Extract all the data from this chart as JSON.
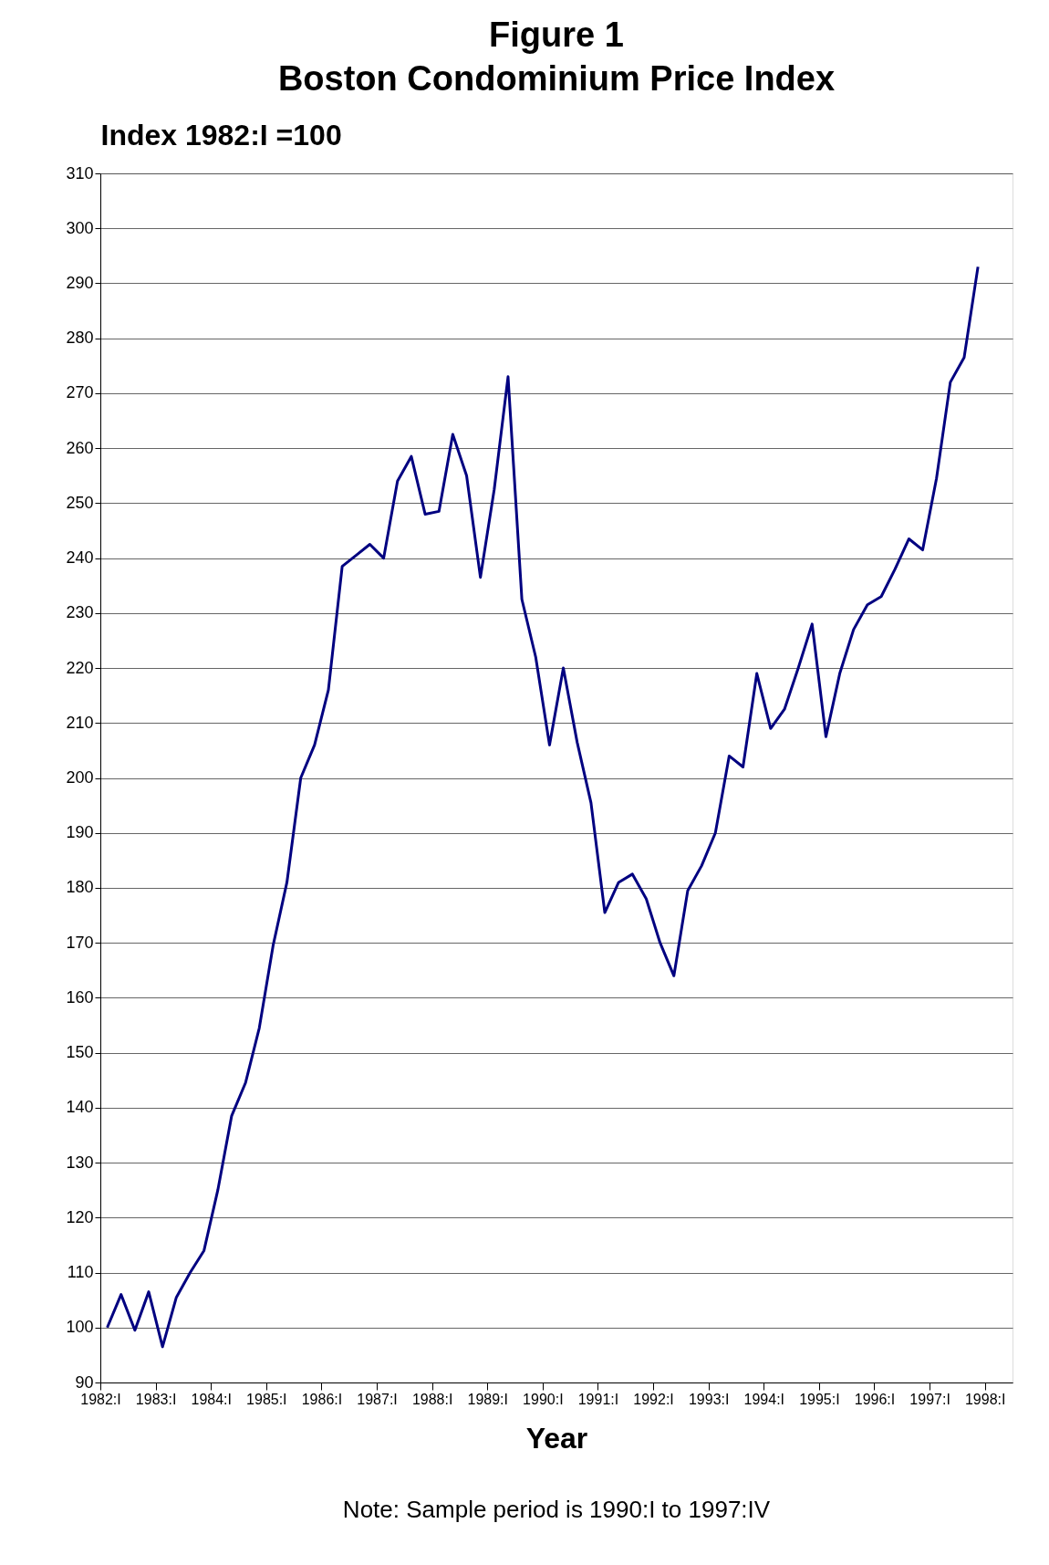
{
  "chart_data": {
    "type": "line",
    "title": "Figure 1",
    "subtitle": "Boston Condominium Price Index",
    "xlabel": "Year",
    "ylabel": "Index 1982:I =100",
    "annotations": [
      "Note: Sample period is 1990:I to 1997:IV"
    ],
    "x": [
      1982.125,
      1982.375,
      1982.625,
      1982.875,
      1983.125,
      1983.375,
      1983.625,
      1983.875,
      1984.125,
      1984.375,
      1984.625,
      1984.875,
      1985.125,
      1985.375,
      1985.625,
      1985.875,
      1986.125,
      1986.375,
      1986.625,
      1986.875,
      1987.125,
      1987.375,
      1987.625,
      1987.875,
      1988.125,
      1988.375,
      1988.625,
      1988.875,
      1989.125,
      1989.375,
      1989.625,
      1989.875,
      1990.125,
      1990.375,
      1990.625,
      1990.875,
      1991.125,
      1991.375,
      1991.625,
      1991.875,
      1992.125,
      1992.375,
      1992.625,
      1992.875,
      1993.125,
      1993.375,
      1993.625,
      1993.875,
      1994.125,
      1994.375,
      1994.625,
      1994.875,
      1995.125,
      1995.375,
      1995.625,
      1995.875,
      1996.125,
      1996.375,
      1996.625,
      1996.875,
      1997.125,
      1997.375,
      1997.625,
      1997.875
    ],
    "series": [
      {
        "color": "#000080",
        "values": [
          100,
          106,
          99.5,
          106.5,
          96.5,
          105.5,
          110,
          114,
          125,
          138.5,
          144.5,
          154.5,
          169.5,
          181,
          200,
          206,
          216,
          238.5,
          240.5,
          242.5,
          240,
          254,
          258.5,
          248,
          248.5,
          262.5,
          255,
          236.5,
          252.5,
          273,
          232.5,
          222,
          206,
          220,
          206.5,
          195.5,
          175.5,
          181,
          182.5,
          178,
          170,
          164,
          179.5,
          184,
          190,
          204,
          202,
          219,
          209,
          212.5,
          220,
          228,
          207.5,
          219,
          227,
          231.5,
          233,
          238,
          243.5,
          241.5,
          254.5,
          272,
          276.5,
          293
        ]
      }
    ],
    "xlim": [
      1982,
      1998.5
    ],
    "xticks": [
      {
        "value": 1982,
        "label": "1982:I"
      },
      {
        "value": 1983,
        "label": "1983:I"
      },
      {
        "value": 1984,
        "label": "1984:I"
      },
      {
        "value": 1985,
        "label": "1985:I"
      },
      {
        "value": 1986,
        "label": "1986:I"
      },
      {
        "value": 1987,
        "label": "1987:I"
      },
      {
        "value": 1988,
        "label": "1988:I"
      },
      {
        "value": 1989,
        "label": "1989:I"
      },
      {
        "value": 1990,
        "label": "1990:I"
      },
      {
        "value": 1991,
        "label": "1991:I"
      },
      {
        "value": 1992,
        "label": "1992:I"
      },
      {
        "value": 1993,
        "label": "1993:I"
      },
      {
        "value": 1994,
        "label": "1994:I"
      },
      {
        "value": 1995,
        "label": "1995:I"
      },
      {
        "value": 1996,
        "label": "1996:I"
      },
      {
        "value": 1997,
        "label": "1997:I"
      },
      {
        "value": 1998,
        "label": "1998:I"
      }
    ],
    "ylim": [
      90,
      310
    ],
    "yticks": [
      90,
      100,
      110,
      120,
      130,
      140,
      150,
      160,
      170,
      180,
      190,
      200,
      210,
      220,
      230,
      240,
      250,
      260,
      270,
      280,
      290,
      300,
      310
    ],
    "grid": "y"
  }
}
